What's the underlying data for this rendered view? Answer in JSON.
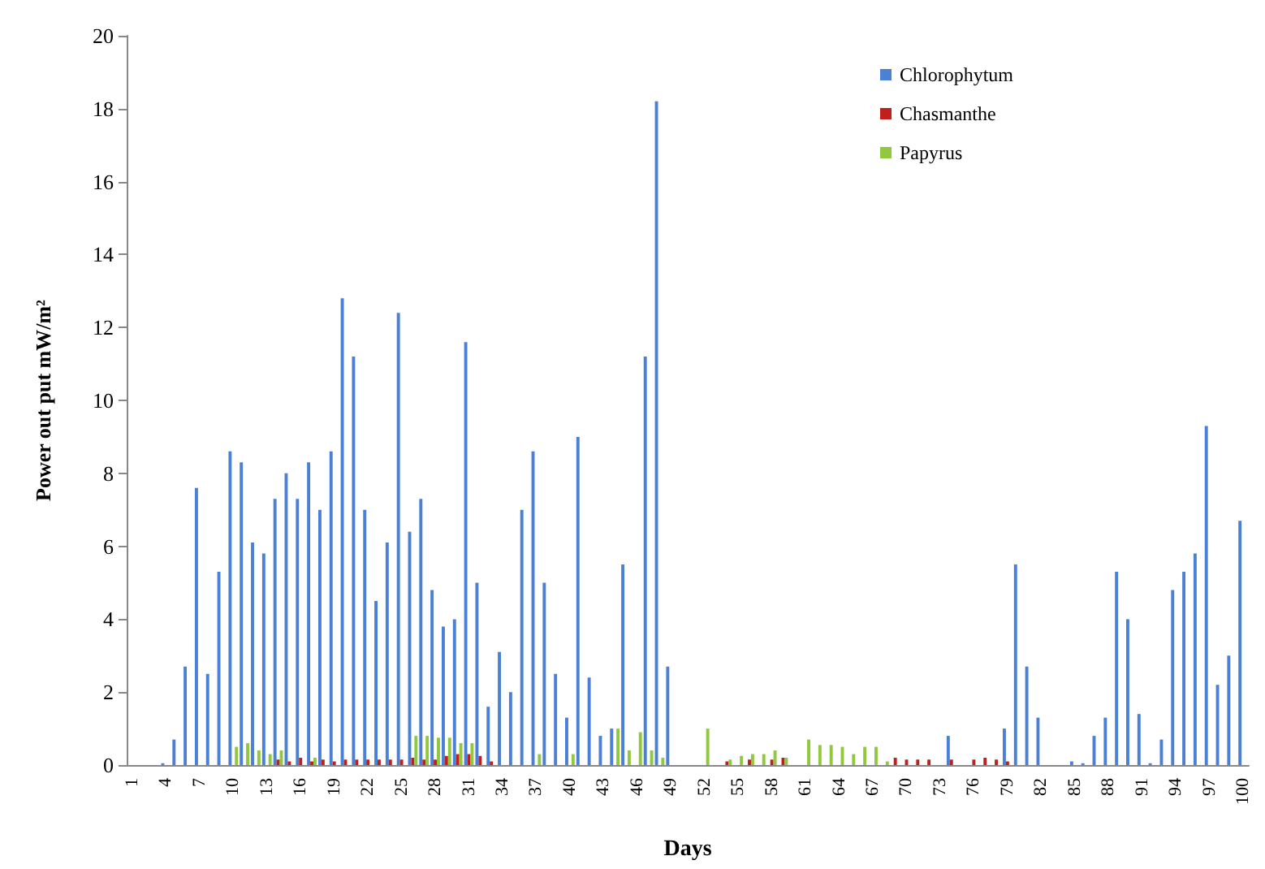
{
  "chart_data": {
    "type": "bar",
    "xlabel": "Days",
    "ylabel": "Power out put mW/m²",
    "categories": [
      "1",
      null,
      null,
      "4",
      null,
      null,
      "7",
      null,
      null,
      "10",
      null,
      null,
      "13",
      null,
      null,
      "16",
      null,
      null,
      "19",
      null,
      null,
      "22",
      null,
      null,
      "25",
      null,
      null,
      "28",
      null,
      null,
      "31",
      null,
      null,
      "34",
      null,
      null,
      "37",
      null,
      null,
      "40",
      null,
      null,
      "43",
      null,
      null,
      "46",
      null,
      null,
      "49",
      null,
      null,
      "52",
      null,
      null,
      "55",
      null,
      null,
      "58",
      null,
      null,
      "61",
      null,
      null,
      "64",
      null,
      null,
      "67",
      null,
      null,
      "70",
      null,
      null,
      "73",
      null,
      null,
      "76",
      null,
      null,
      "79",
      null,
      null,
      "82",
      null,
      null,
      "85",
      null,
      null,
      "88",
      null,
      null,
      "91",
      null,
      null,
      "94",
      null,
      null,
      "97",
      null,
      null,
      "100"
    ],
    "series": [
      {
        "name": "Chlorophytum",
        "color": "#4a80d6",
        "values": [
          0,
          0,
          0,
          0.05,
          0.7,
          2.7,
          7.6,
          2.5,
          5.3,
          8.6,
          8.3,
          6.1,
          5.8,
          7.3,
          8.0,
          7.3,
          8.3,
          7.0,
          8.6,
          12.8,
          11.2,
          7.0,
          4.5,
          6.1,
          12.4,
          6.4,
          7.3,
          4.8,
          3.8,
          4.0,
          11.6,
          5.0,
          1.6,
          3.1,
          2.0,
          7.0,
          8.6,
          5.0,
          2.5,
          1.3,
          9.0,
          2.4,
          0.8,
          1.0,
          5.5,
          0,
          11.2,
          18.2,
          2.7,
          0,
          0,
          0,
          0,
          0,
          0,
          0,
          0,
          0,
          0,
          0,
          0,
          0,
          0,
          0,
          0,
          0,
          0,
          0,
          0,
          0,
          0,
          0,
          0,
          0.8,
          0,
          0,
          0,
          0,
          1.0,
          5.5,
          2.7,
          1.3,
          0,
          0,
          0.1,
          0.05,
          0.8,
          1.3,
          5.3,
          4.0,
          1.4,
          0.05,
          0.7,
          4.8,
          5.3,
          5.8,
          9.3,
          2.2,
          3.0,
          6.7
        ]
      },
      {
        "name": "Chasmanthe",
        "color": "#c0201c",
        "values": [
          0,
          0,
          0,
          0,
          0,
          0,
          0,
          0,
          0,
          0,
          0,
          0,
          0,
          0.15,
          0.1,
          0.2,
          0.1,
          0.15,
          0.1,
          0.15,
          0.15,
          0.15,
          0.15,
          0.15,
          0.15,
          0.2,
          0.15,
          0.15,
          0.25,
          0.3,
          0.3,
          0.25,
          0.1,
          0,
          0,
          0,
          0,
          0,
          0,
          0,
          0,
          0,
          0,
          0,
          0,
          0,
          0,
          0,
          0,
          0,
          0,
          0,
          0,
          0.1,
          0,
          0.15,
          0,
          0.15,
          0.2,
          0,
          0,
          0,
          0,
          0,
          0,
          0,
          0,
          0,
          0.2,
          0.15,
          0.15,
          0.15,
          0,
          0.15,
          0,
          0.15,
          0.2,
          0.15,
          0.1,
          0,
          0,
          0,
          0,
          0,
          0,
          0,
          0,
          0,
          0,
          0,
          0,
          0,
          0,
          0,
          0,
          0,
          0,
          0,
          0,
          0
        ]
      },
      {
        "name": "Papyrus",
        "color": "#92c83e",
        "values": [
          0,
          0,
          0,
          0,
          0,
          0,
          0,
          0,
          0,
          0.5,
          0.6,
          0.4,
          0.3,
          0.4,
          0,
          0,
          0.2,
          0,
          0,
          0,
          0,
          0,
          0,
          0,
          0,
          0.8,
          0.8,
          0.75,
          0.75,
          0.6,
          0.6,
          0,
          0,
          0,
          0,
          0,
          0.3,
          0,
          0,
          0.3,
          0,
          0,
          0,
          1.0,
          0.4,
          0.9,
          0.4,
          0.2,
          0,
          0,
          0,
          1.0,
          0,
          0.15,
          0.25,
          0.3,
          0.3,
          0.4,
          0.2,
          0,
          0.7,
          0.55,
          0.55,
          0.5,
          0.3,
          0.5,
          0.5,
          0.1,
          0,
          0,
          0,
          0,
          0,
          0,
          0,
          0,
          0,
          0,
          0,
          0,
          0,
          0,
          0,
          0,
          0,
          0,
          0,
          0,
          0,
          0,
          0,
          0,
          0,
          0,
          0,
          0,
          0,
          0,
          0,
          0
        ]
      }
    ],
    "ylim": [
      0,
      20
    ],
    "yticks": [
      0,
      2,
      4,
      6,
      8,
      10,
      12,
      14,
      16,
      18,
      20
    ],
    "grid": false,
    "legend": "top right"
  }
}
